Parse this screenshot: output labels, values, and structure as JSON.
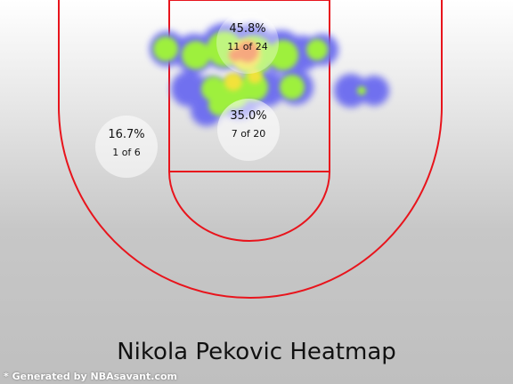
{
  "chart_data": {
    "type": "heatmap",
    "title": "Nikola Pekovic Heatmap",
    "footer": "* Generated by NBAsavant.com",
    "zones": [
      {
        "name": "paint-top",
        "pct": "45.8%",
        "made": 11,
        "attempts": 24,
        "count_text": "11 of 24"
      },
      {
        "name": "paint-mid",
        "pct": "35.0%",
        "made": 7,
        "attempts": 20,
        "count_text": "7 of 20"
      },
      {
        "name": "left-midrange",
        "pct": "16.7%",
        "made": 1,
        "attempts": 6,
        "count_text": "1 of 6"
      }
    ],
    "colors": {
      "court_lines": "#e8141c",
      "zone_circle": "#ffffff",
      "cold": "#6a6af0",
      "warm": "#9ef03c",
      "hot": "#f27a3a"
    }
  }
}
